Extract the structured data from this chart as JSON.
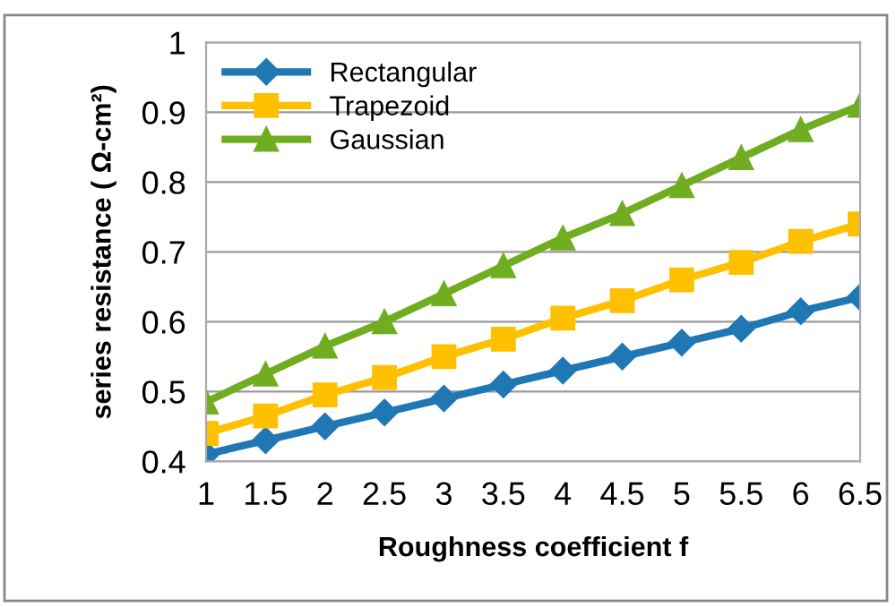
{
  "chart_data": {
    "type": "line",
    "xlabel": "Roughness coefficient f",
    "ylabel": "series resistance ( Ω-cm²)",
    "x": [
      1,
      1.5,
      2,
      2.5,
      3,
      3.5,
      4,
      4.5,
      5,
      5.5,
      6,
      6.5
    ],
    "xlim": [
      1,
      6.5
    ],
    "xticks": [
      1,
      1.5,
      2,
      2.5,
      3,
      3.5,
      4,
      4.5,
      5,
      5.5,
      6,
      6.5
    ],
    "ylim": [
      0.4,
      1
    ],
    "yticks": [
      0.4,
      0.5,
      0.6,
      0.7,
      0.8,
      0.9,
      1
    ],
    "grid": "y",
    "legend": "top left",
    "series": [
      {
        "name": "Rectangular",
        "color": "#1f77b4",
        "marker": "diamond",
        "values": [
          0.41,
          0.43,
          0.45,
          0.47,
          0.49,
          0.51,
          0.53,
          0.55,
          0.57,
          0.59,
          0.615,
          0.635
        ]
      },
      {
        "name": "Trapezoid",
        "color": "#ffc000",
        "marker": "square",
        "values": [
          0.44,
          0.465,
          0.495,
          0.52,
          0.55,
          0.575,
          0.605,
          0.63,
          0.66,
          0.685,
          0.715,
          0.74
        ]
      },
      {
        "name": "Gaussian",
        "color": "#70ad20",
        "marker": "triangle",
        "values": [
          0.485,
          0.525,
          0.565,
          0.6,
          0.64,
          0.68,
          0.72,
          0.755,
          0.795,
          0.835,
          0.875,
          0.91
        ]
      }
    ]
  }
}
